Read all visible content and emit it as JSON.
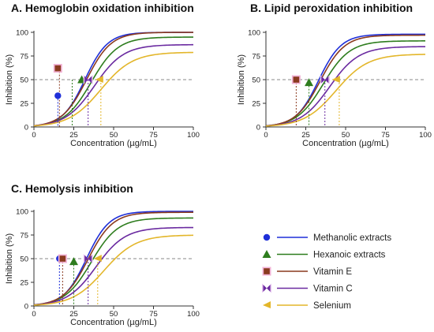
{
  "colors": {
    "methanolic": "#1f2fd8",
    "hexanoic": "#2e7d1e",
    "vitamin_e": "#8a3a1f",
    "vitamin_c": "#6a2aa0",
    "selenium": "#e3b62a",
    "vitamin_e_halo": "#f2b3d6",
    "vitamin_c_halo": "#e8c6f0",
    "reference_line": "#888888"
  },
  "chart_data": [
    {
      "type": "line",
      "title": "A. Hemoglobin oxidation inhibition",
      "xlabel": "Concentration (µg/mL)",
      "ylabel": "Inhibition (%)",
      "xlim": [
        0,
        100
      ],
      "ylim": [
        0,
        100
      ],
      "xticks": [
        "0",
        "25",
        "50",
        "75",
        "100"
      ],
      "yticks": [
        "0",
        "25",
        "50",
        "75",
        "100"
      ],
      "reference_line_y": 50,
      "series": [
        {
          "name": "Methanolic extracts",
          "color_key": "methanolic",
          "top": 100,
          "mid": 32,
          "k": 0.14
        },
        {
          "name": "Hexanoic extracts",
          "color_key": "hexanoic",
          "top": 95,
          "mid": 36,
          "k": 0.12
        },
        {
          "name": "Vitamin E",
          "color_key": "vitamin_e",
          "top": 100,
          "mid": 33,
          "k": 0.13
        },
        {
          "name": "Vitamin C",
          "color_key": "vitamin_c",
          "top": 87,
          "mid": 38,
          "k": 0.11
        },
        {
          "name": "Selenium",
          "color_key": "selenium",
          "top": 79,
          "mid": 42,
          "k": 0.1
        }
      ],
      "markers": [
        {
          "series": "Methanolic extracts",
          "x": 15,
          "y": 33,
          "guide_x": 15
        },
        {
          "series": "Hexanoic extracts",
          "x": 30,
          "y": 50,
          "guide_x": 24
        },
        {
          "series": "Vitamin E",
          "x": 15,
          "y": 62,
          "guide_x": 16
        },
        {
          "series": "Vitamin C",
          "x": 34,
          "y": 50,
          "guide_x": 34
        },
        {
          "series": "Selenium",
          "x": 41,
          "y": 50,
          "guide_x": 42
        }
      ]
    },
    {
      "type": "line",
      "title": "B. Lipid peroxidation inhibition",
      "xlabel": "Concentration (µg/mL)",
      "ylabel": "Inhibition (%)",
      "xlim": [
        0,
        100
      ],
      "ylim": [
        0,
        100
      ],
      "xticks": [
        "0",
        "25",
        "50",
        "75",
        "100"
      ],
      "yticks": [
        "0",
        "25",
        "50",
        "75",
        "100"
      ],
      "reference_line_y": 50,
      "series": [
        {
          "name": "Methanolic extracts",
          "color_key": "methanolic",
          "top": 98,
          "mid": 33,
          "k": 0.14
        },
        {
          "name": "Hexanoic extracts",
          "color_key": "hexanoic",
          "top": 91,
          "mid": 36,
          "k": 0.12
        },
        {
          "name": "Vitamin E",
          "color_key": "vitamin_e",
          "top": 97,
          "mid": 34,
          "k": 0.13
        },
        {
          "name": "Vitamin C",
          "color_key": "vitamin_c",
          "top": 85,
          "mid": 40,
          "k": 0.11
        },
        {
          "name": "Selenium",
          "color_key": "selenium",
          "top": 77,
          "mid": 44,
          "k": 0.1
        }
      ],
      "markers": [
        {
          "series": "Vitamin E",
          "x": 19,
          "y": 50,
          "guide_x": 19
        },
        {
          "series": "Hexanoic extracts",
          "x": 27,
          "y": 47,
          "guide_x": 27
        },
        {
          "series": "Vitamin C",
          "x": 37,
          "y": 50,
          "guide_x": 37
        },
        {
          "series": "Selenium",
          "x": 44,
          "y": 50,
          "guide_x": 46
        }
      ]
    },
    {
      "type": "line",
      "title": "C. Hemolysis inhibition",
      "xlabel": "Concentration (µg/mL)",
      "ylabel": "Inhibition (%)",
      "xlim": [
        0,
        100
      ],
      "ylim": [
        0,
        100
      ],
      "xticks": [
        "0",
        "25",
        "50",
        "75",
        "100"
      ],
      "yticks": [
        "0",
        "25",
        "50",
        "75",
        "100"
      ],
      "reference_line_y": 50,
      "series": [
        {
          "name": "Methanolic extracts",
          "color_key": "methanolic",
          "top": 100,
          "mid": 33,
          "k": 0.14
        },
        {
          "name": "Hexanoic extracts",
          "color_key": "hexanoic",
          "top": 93,
          "mid": 36,
          "k": 0.12
        },
        {
          "name": "Vitamin E",
          "color_key": "vitamin_e",
          "top": 99,
          "mid": 34,
          "k": 0.13
        },
        {
          "name": "Vitamin C",
          "color_key": "vitamin_c",
          "top": 83,
          "mid": 39,
          "k": 0.11
        },
        {
          "name": "Selenium",
          "color_key": "selenium",
          "top": 75,
          "mid": 44,
          "k": 0.1
        }
      ],
      "markers": [
        {
          "series": "Methanolic extracts",
          "x": 16,
          "y": 50,
          "guide_x": 16
        },
        {
          "series": "Vitamin E",
          "x": 18,
          "y": 50,
          "guide_x": 18
        },
        {
          "series": "Hexanoic extracts",
          "x": 25,
          "y": 47,
          "guide_x": 25
        },
        {
          "series": "Vitamin C",
          "x": 34,
          "y": 50,
          "guide_x": 34
        },
        {
          "series": "Selenium",
          "x": 40,
          "y": 50,
          "guide_x": 40
        }
      ]
    }
  ],
  "legend": {
    "items": [
      {
        "label": "Methanolic extracts",
        "color_key": "methanolic",
        "shape": "circle"
      },
      {
        "label": "Hexanoic extracts",
        "color_key": "hexanoic",
        "shape": "triangle"
      },
      {
        "label": "Vitamin E",
        "color_key": "vitamin_e",
        "shape": "square"
      },
      {
        "label": "Vitamin C",
        "color_key": "vitamin_c",
        "shape": "bowtie"
      },
      {
        "label": "Selenium",
        "color_key": "selenium",
        "shape": "tri-left"
      }
    ]
  }
}
